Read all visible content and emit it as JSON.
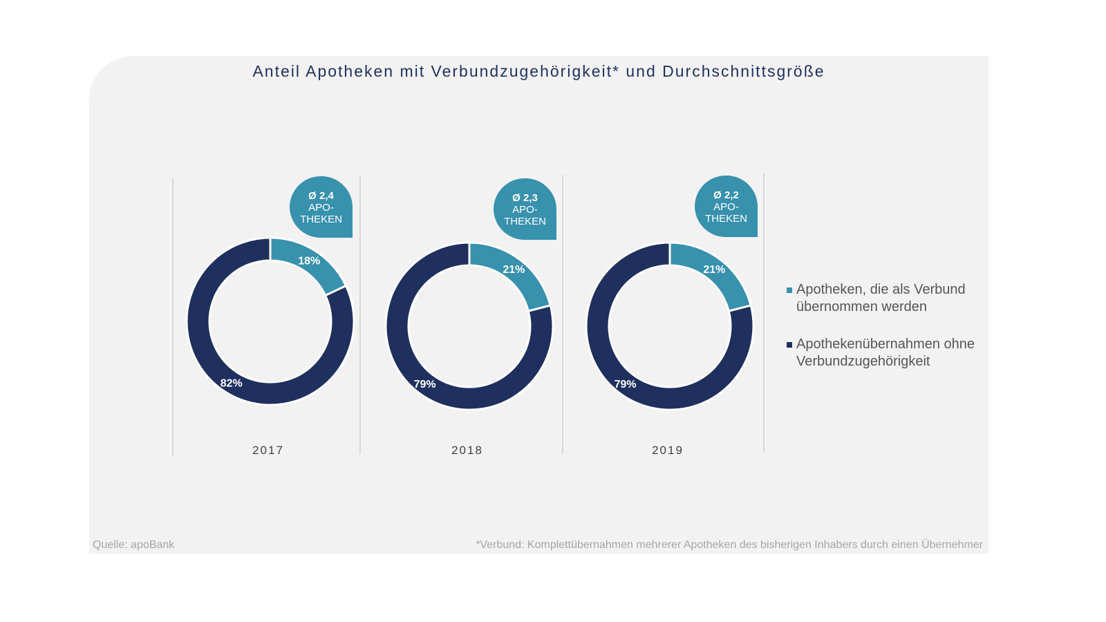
{
  "chart_data": {
    "type": "pie",
    "title": "Anteil Apotheken mit Verbundzugehörigkeit* und Durchschnittsgröße",
    "colors": {
      "verbund": "#3891ad",
      "ohne": "#1f305e"
    },
    "legend": [
      "Apotheken, die als Verbund übernommen werden",
      "Apothekenübernahmen ohne Verbundzugehörigkeit"
    ],
    "legend_position": "right",
    "charts": [
      {
        "year": "2017",
        "values": [
          18,
          82
        ],
        "labels": [
          "18%",
          "82%"
        ],
        "badge": [
          "Ø 2,4",
          "APO-",
          "THEKEN"
        ]
      },
      {
        "year": "2018",
        "values": [
          21,
          79
        ],
        "labels": [
          "21%",
          "79%"
        ],
        "badge": [
          "Ø 2,3",
          "APO-",
          "THEKEN"
        ]
      },
      {
        "year": "2019",
        "values": [
          21,
          79
        ],
        "labels": [
          "21%",
          "79%"
        ],
        "badge": [
          "Ø 2,2",
          "APO-",
          "THEKEN"
        ]
      }
    ]
  },
  "footer": {
    "source": "Quelle: apoBank",
    "note": "*Verbund: Komplettübernahmen mehrerer Apotheken des bisherigen Inhabers durch einen Übernehmer"
  }
}
